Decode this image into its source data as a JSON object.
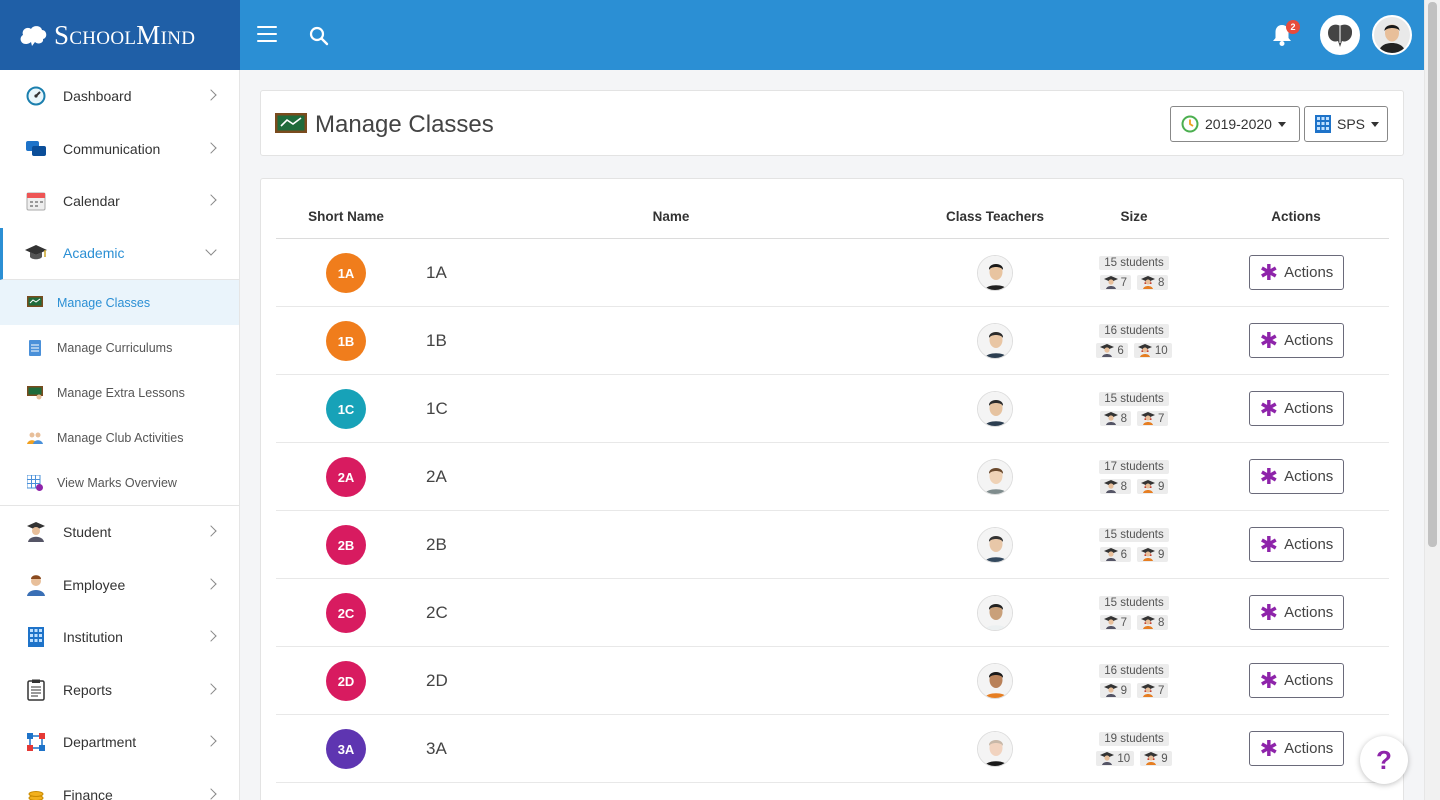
{
  "brand": {
    "name": "SchoolMind"
  },
  "topbar": {
    "notifications_count": "2"
  },
  "sidebar": {
    "items_top": [
      {
        "label": "Dashboard",
        "icon": "dashboard-icon"
      },
      {
        "label": "Communication",
        "icon": "chat-icon"
      },
      {
        "label": "Calendar",
        "icon": "calendar-icon"
      },
      {
        "label": "Academic",
        "icon": "graduation-cap-icon"
      }
    ],
    "sub_items": [
      {
        "label": "Manage Classes",
        "icon": "blackboard-icon"
      },
      {
        "label": "Manage Curriculums",
        "icon": "document-icon"
      },
      {
        "label": "Manage Extra Lessons",
        "icon": "extra-lesson-icon"
      },
      {
        "label": "Manage Club Activities",
        "icon": "group-icon"
      },
      {
        "label": "View Marks Overview",
        "icon": "grid-icon"
      }
    ],
    "items_bottom": [
      {
        "label": "Student",
        "icon": "student-icon"
      },
      {
        "label": "Employee",
        "icon": "employee-icon"
      },
      {
        "label": "Institution",
        "icon": "building-icon"
      },
      {
        "label": "Reports",
        "icon": "clipboard-icon"
      },
      {
        "label": "Department",
        "icon": "department-icon"
      },
      {
        "label": "Finance",
        "icon": "coins-icon"
      }
    ]
  },
  "header": {
    "title": "Manage Classes",
    "year_label": "2019-2020",
    "school_label": "SPS"
  },
  "table": {
    "columns": [
      "Short Name",
      "Name",
      "Class Teachers",
      "Size",
      "Actions"
    ],
    "action_label": "Actions",
    "rows": [
      {
        "short": "1A",
        "name": "1A",
        "color": "#f07d1c",
        "students": "15 students",
        "male": "7",
        "female": "8"
      },
      {
        "short": "1B",
        "name": "1B",
        "color": "#f07d1c",
        "students": "16 students",
        "male": "6",
        "female": "10"
      },
      {
        "short": "1C",
        "name": "1C",
        "color": "#17a2b8",
        "students": "15 students",
        "male": "8",
        "female": "7"
      },
      {
        "short": "2A",
        "name": "2A",
        "color": "#d81b60",
        "students": "17 students",
        "male": "8",
        "female": "9"
      },
      {
        "short": "2B",
        "name": "2B",
        "color": "#d81b60",
        "students": "15 students",
        "male": "6",
        "female": "9"
      },
      {
        "short": "2C",
        "name": "2C",
        "color": "#d81b60",
        "students": "15 students",
        "male": "7",
        "female": "8"
      },
      {
        "short": "2D",
        "name": "2D",
        "color": "#d81b60",
        "students": "16 students",
        "male": "9",
        "female": "7"
      },
      {
        "short": "3A",
        "name": "3A",
        "color": "#5e35b1",
        "students": "19 students",
        "male": "10",
        "female": "9"
      }
    ]
  },
  "help": {
    "label": "?"
  }
}
